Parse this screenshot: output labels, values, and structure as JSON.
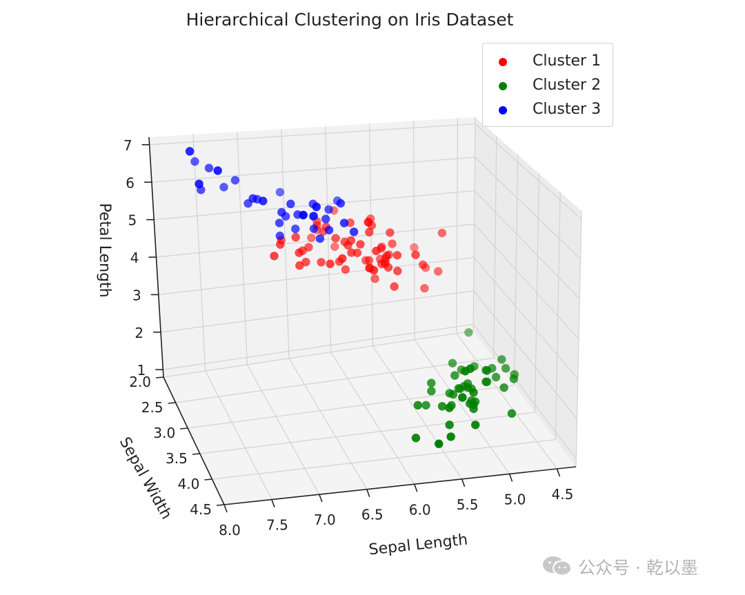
{
  "chart_data": {
    "type": "scatter",
    "projection": "3d",
    "title": "Hierarchical Clustering on Iris Dataset",
    "xlabel": "Sepal Length",
    "ylabel": "Sepal Width",
    "zlabel": "Petal Length",
    "xlim": [
      4.3,
      7.9
    ],
    "ylim": [
      2.0,
      4.4
    ],
    "zlim": [
      1.0,
      6.9
    ],
    "xticks": [
      "4.5",
      "5.0",
      "5.5",
      "6.0",
      "6.5",
      "7.0",
      "7.5",
      "8.0"
    ],
    "yticks": [
      "2.0",
      "2.5",
      "3.0",
      "3.5",
      "4.0",
      "4.5"
    ],
    "zticks": [
      "1",
      "2",
      "3",
      "4",
      "5",
      "6",
      "7"
    ],
    "grid": true,
    "legend_position": "upper right",
    "series": [
      {
        "name": "Cluster 1",
        "color": "#ff0000",
        "points": [
          [
            7.0,
            3.2,
            4.7
          ],
          [
            6.4,
            3.2,
            4.5
          ],
          [
            6.9,
            3.1,
            4.9
          ],
          [
            5.5,
            2.3,
            4.0
          ],
          [
            6.5,
            2.8,
            4.6
          ],
          [
            5.7,
            2.8,
            4.5
          ],
          [
            6.3,
            3.3,
            4.7
          ],
          [
            4.9,
            2.4,
            3.3
          ],
          [
            6.6,
            2.9,
            4.6
          ],
          [
            5.2,
            2.7,
            3.9
          ],
          [
            5.0,
            2.0,
            3.5
          ],
          [
            5.9,
            3.0,
            4.2
          ],
          [
            6.0,
            2.2,
            4.0
          ],
          [
            6.1,
            2.9,
            4.7
          ],
          [
            5.6,
            2.9,
            3.6
          ],
          [
            6.7,
            3.1,
            4.4
          ],
          [
            5.6,
            3.0,
            4.5
          ],
          [
            5.8,
            2.7,
            4.1
          ],
          [
            6.2,
            2.2,
            4.5
          ],
          [
            5.6,
            2.5,
            3.9
          ],
          [
            5.9,
            3.2,
            4.8
          ],
          [
            6.1,
            2.8,
            4.0
          ],
          [
            6.3,
            2.5,
            4.9
          ],
          [
            6.1,
            2.8,
            4.7
          ],
          [
            6.4,
            2.9,
            4.3
          ],
          [
            6.6,
            3.0,
            4.4
          ],
          [
            6.8,
            2.8,
            4.8
          ],
          [
            6.7,
            3.0,
            5.0
          ],
          [
            6.0,
            2.9,
            4.5
          ],
          [
            5.7,
            2.6,
            3.5
          ],
          [
            5.5,
            2.4,
            3.8
          ],
          [
            5.5,
            2.4,
            3.7
          ],
          [
            5.8,
            2.7,
            3.9
          ],
          [
            6.0,
            2.7,
            5.1
          ],
          [
            5.4,
            3.0,
            4.5
          ],
          [
            6.0,
            3.4,
            4.5
          ],
          [
            6.7,
            3.1,
            4.7
          ],
          [
            6.3,
            2.3,
            4.4
          ],
          [
            5.6,
            3.0,
            4.1
          ],
          [
            5.5,
            2.5,
            4.0
          ],
          [
            5.5,
            2.6,
            4.4
          ],
          [
            6.1,
            3.0,
            4.6
          ],
          [
            5.8,
            2.6,
            4.0
          ],
          [
            5.0,
            2.3,
            3.3
          ],
          [
            5.6,
            2.7,
            4.2
          ],
          [
            5.7,
            3.0,
            4.2
          ],
          [
            5.7,
            2.9,
            4.2
          ],
          [
            6.2,
            2.9,
            4.3
          ],
          [
            5.1,
            2.5,
            3.0
          ],
          [
            5.7,
            2.8,
            4.1
          ],
          [
            5.8,
            2.7,
            5.1
          ],
          [
            4.9,
            2.5,
            4.5
          ],
          [
            5.7,
            2.5,
            5.0
          ],
          [
            5.8,
            2.8,
            5.1
          ],
          [
            6.0,
            2.2,
            5.0
          ],
          [
            5.6,
            2.8,
            4.9
          ],
          [
            6.3,
            2.7,
            4.9
          ],
          [
            6.2,
            2.8,
            4.8
          ],
          [
            6.1,
            3.0,
            4.9
          ],
          [
            6.3,
            2.8,
            5.1
          ],
          [
            6.0,
            3.0,
            4.8
          ],
          [
            5.8,
            2.7,
            5.1
          ],
          [
            6.3,
            2.5,
            5.0
          ],
          [
            5.9,
            3.0,
            5.1
          ]
        ]
      },
      {
        "name": "Cluster 2",
        "color": "#008000",
        "points": [
          [
            5.1,
            3.5,
            1.4
          ],
          [
            4.9,
            3.0,
            1.4
          ],
          [
            4.7,
            3.2,
            1.3
          ],
          [
            4.6,
            3.1,
            1.5
          ],
          [
            5.0,
            3.6,
            1.4
          ],
          [
            5.4,
            3.9,
            1.7
          ],
          [
            4.6,
            3.4,
            1.4
          ],
          [
            5.0,
            3.4,
            1.5
          ],
          [
            4.4,
            2.9,
            1.4
          ],
          [
            4.9,
            3.1,
            1.5
          ],
          [
            5.4,
            3.7,
            1.5
          ],
          [
            4.8,
            3.4,
            1.6
          ],
          [
            4.8,
            3.0,
            1.4
          ],
          [
            4.3,
            3.0,
            1.1
          ],
          [
            5.8,
            4.0,
            1.2
          ],
          [
            5.7,
            4.4,
            1.5
          ],
          [
            5.4,
            3.9,
            1.3
          ],
          [
            5.1,
            3.5,
            1.4
          ],
          [
            5.7,
            3.8,
            1.7
          ],
          [
            5.1,
            3.8,
            1.5
          ],
          [
            5.4,
            3.4,
            1.7
          ],
          [
            5.1,
            3.7,
            1.5
          ],
          [
            4.6,
            3.6,
            1.0
          ],
          [
            5.1,
            3.3,
            1.7
          ],
          [
            4.8,
            3.4,
            1.9
          ],
          [
            5.0,
            3.0,
            1.6
          ],
          [
            5.0,
            3.4,
            1.6
          ],
          [
            5.2,
            3.5,
            1.5
          ],
          [
            5.2,
            3.4,
            1.4
          ],
          [
            4.7,
            3.2,
            1.6
          ],
          [
            4.8,
            3.1,
            1.6
          ],
          [
            5.4,
            3.4,
            1.5
          ],
          [
            5.2,
            4.1,
            1.5
          ],
          [
            5.5,
            4.2,
            1.4
          ],
          [
            4.9,
            3.1,
            1.5
          ],
          [
            5.0,
            3.2,
            1.2
          ],
          [
            5.5,
            3.5,
            1.3
          ],
          [
            4.4,
            3.0,
            1.3
          ],
          [
            5.1,
            3.4,
            1.5
          ],
          [
            5.0,
            3.5,
            1.3
          ],
          [
            4.5,
            2.3,
            1.3
          ],
          [
            4.4,
            3.2,
            1.3
          ],
          [
            5.0,
            3.5,
            1.6
          ],
          [
            5.1,
            3.8,
            1.9
          ],
          [
            4.8,
            3.0,
            1.4
          ],
          [
            5.1,
            3.8,
            1.6
          ],
          [
            4.6,
            3.2,
            1.4
          ],
          [
            5.3,
            3.7,
            1.5
          ],
          [
            5.0,
            3.3,
            1.4
          ]
        ]
      },
      {
        "name": "Cluster 3",
        "color": "#0000ff",
        "points": [
          [
            7.7,
            3.8,
            6.7
          ],
          [
            7.7,
            2.6,
            6.9
          ],
          [
            7.7,
            2.8,
            6.7
          ],
          [
            7.7,
            3.0,
            6.1
          ],
          [
            7.9,
            3.8,
            6.4
          ],
          [
            7.6,
            3.0,
            6.6
          ],
          [
            7.3,
            2.9,
            6.3
          ],
          [
            7.2,
            3.6,
            6.1
          ],
          [
            7.4,
            2.8,
            6.1
          ],
          [
            7.2,
            3.2,
            6.0
          ],
          [
            7.1,
            3.0,
            5.9
          ],
          [
            6.9,
            3.2,
            5.7
          ],
          [
            6.9,
            3.1,
            5.4
          ],
          [
            6.8,
            3.2,
            5.9
          ],
          [
            6.7,
            3.3,
            5.7
          ],
          [
            6.7,
            3.0,
            5.2
          ],
          [
            6.7,
            3.1,
            5.6
          ],
          [
            6.7,
            3.3,
            5.7
          ],
          [
            6.7,
            2.5,
            5.8
          ],
          [
            6.5,
            3.0,
            5.8
          ],
          [
            6.5,
            3.2,
            5.1
          ],
          [
            6.5,
            3.0,
            5.5
          ],
          [
            6.5,
            3.0,
            5.2
          ],
          [
            6.4,
            2.8,
            5.6
          ],
          [
            6.4,
            3.2,
            5.3
          ],
          [
            6.4,
            2.7,
            5.3
          ],
          [
            6.4,
            3.1,
            5.5
          ],
          [
            6.4,
            2.8,
            5.6
          ],
          [
            6.3,
            3.3,
            6.0
          ],
          [
            6.3,
            2.9,
            5.6
          ],
          [
            6.3,
            3.4,
            5.6
          ],
          [
            6.2,
            3.4,
            5.4
          ],
          [
            6.1,
            2.6,
            5.6
          ],
          [
            6.9,
            3.1,
            5.1
          ],
          [
            6.8,
            3.0,
            5.5
          ],
          [
            7.2,
            3.0,
            5.8
          ],
          [
            7.7,
            2.6,
            6.9
          ]
        ]
      }
    ]
  },
  "watermark": {
    "text": "公众号 · 乾以墨",
    "icon": "wechat-icon"
  }
}
